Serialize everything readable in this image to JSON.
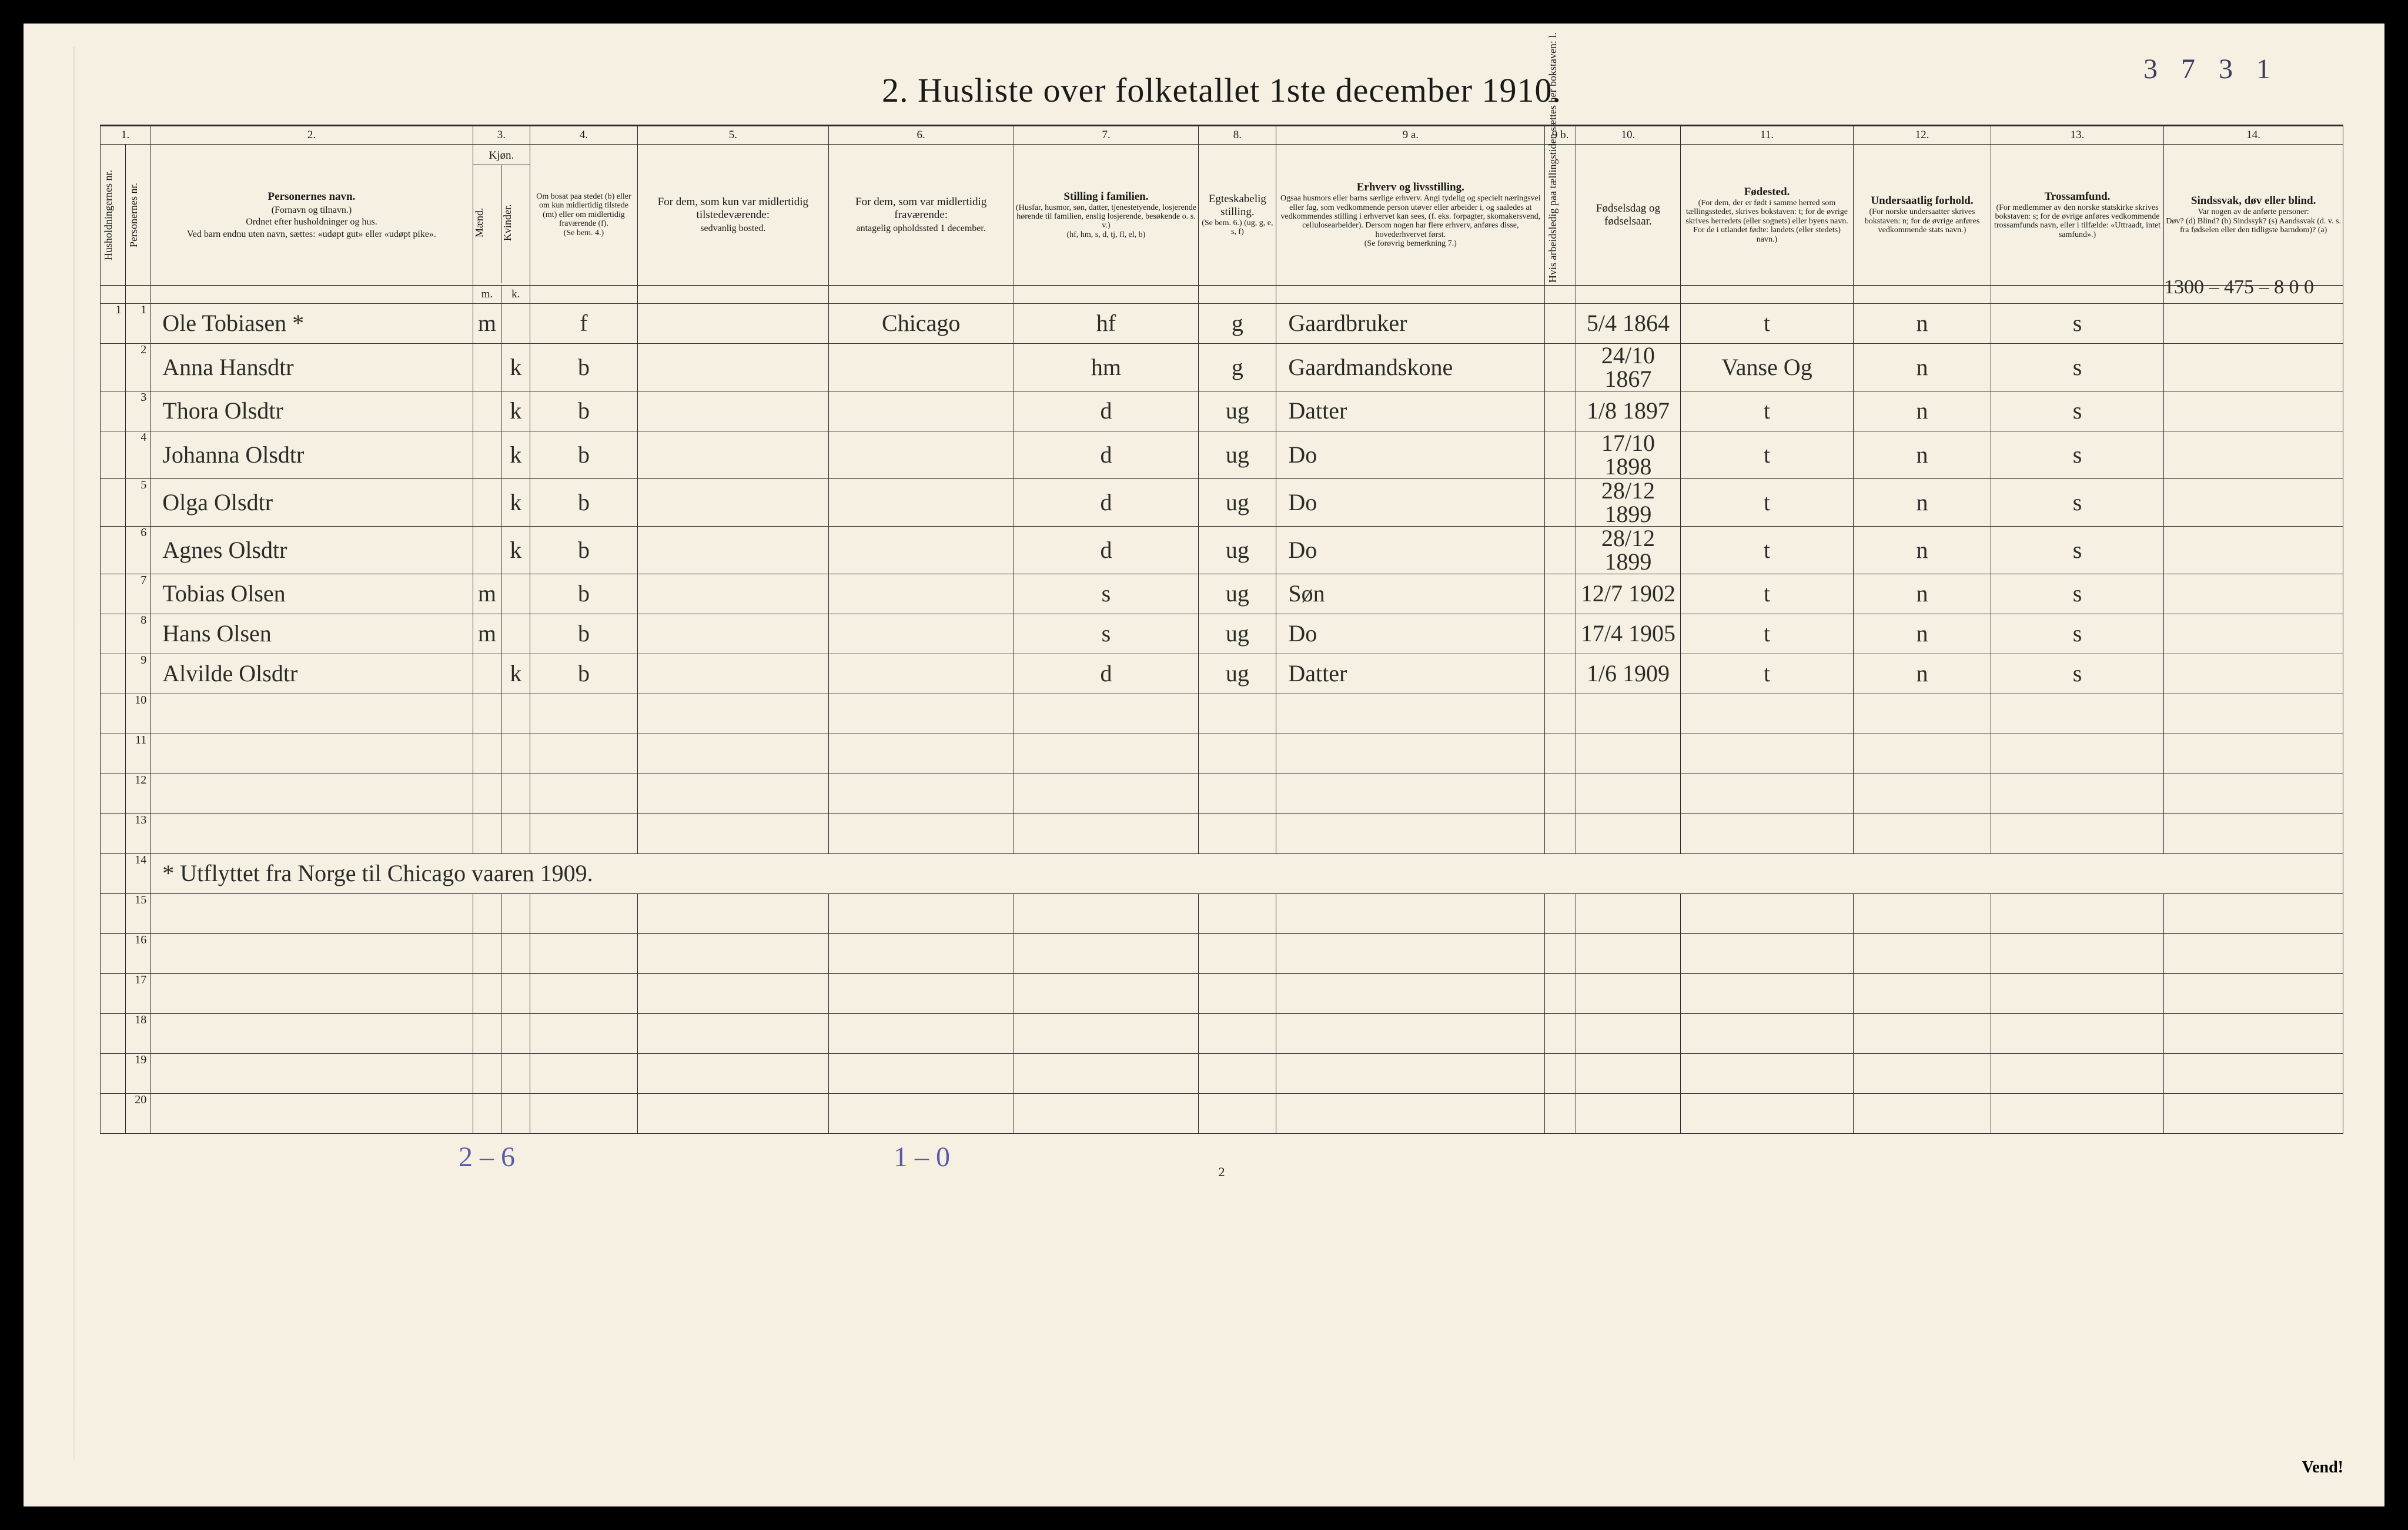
{
  "top_right_note": "3 7 3 1",
  "title": "2.  Husliste over folketallet 1ste december 1910.",
  "header_annotation_right": "1300 – 475 – 8    0   0",
  "column_numbers": [
    "1.",
    "",
    "2.",
    "3.",
    "",
    "4.",
    "5.",
    "6.",
    "7.",
    "8.",
    "9 a.",
    "9 b.",
    "10.",
    "11.",
    "12.",
    "13.",
    "14."
  ],
  "headers": {
    "c1": "Husholdningernes nr.",
    "c1b": "Personernes nr.",
    "c2_main": "Personernes navn.",
    "c2_sub1": "(Fornavn og tilnavn.)",
    "c2_sub2": "Ordnet efter husholdninger og hus.",
    "c2_sub3": "Ved barn endnu uten navn, sættes: «udøpt gut» eller «udøpt pike».",
    "c3_main": "Kjøn.",
    "c3_m": "Mænd.",
    "c3_k": "Kvinder.",
    "c4_main": "Om bosat paa stedet (b) eller om kun midlertidig tilstede (mt) eller om midlertidig fraværende (f).",
    "c4_sub": "(Se bem. 4.)",
    "c5_main": "For dem, som kun var midlertidig tilstedeværende:",
    "c5_sub": "sedvanlig bosted.",
    "c6_main": "For dem, som var midlertidig fraværende:",
    "c6_sub": "antagelig opholdssted 1 december.",
    "c7_main": "Stilling i familien.",
    "c7_sub1": "(Husfar, husmor, søn, datter, tjenestetyende, losjerende hørende til familien, enslig losjerende, besøkende o. s. v.)",
    "c7_sub2": "(hf, hm, s, d, tj, fl, el, b)",
    "c8_main": "Egteskabelig stilling.",
    "c8_sub": "(Se bem. 6.) (ug, g, e, s, f)",
    "c9a_main": "Erhverv og livsstilling.",
    "c9a_sub1": "Ogsaa husmors eller barns særlige erhverv. Angi tydelig og specielt næringsvei eller fag, som vedkommende person utøver eller arbeider i, og saaledes at vedkommendes stilling i erhvervet kan sees, (f. eks. forpagter, skomakersvend, cellulosearbeider). Dersom nogen har flere erhverv, anføres disse, hovederhvervet først.",
    "c9a_sub2": "(Se forøvrig bemerkning 7.)",
    "c9b": "Hvis arbeidsledig paa tællingstiden sættes her bokstaven: l.",
    "c10_main": "Fødselsdag og fødselsaar.",
    "c11_main": "Fødested.",
    "c11_sub": "(For dem, der er født i samme herred som tællingsstedet, skrives bokstaven: t; for de øvrige skrives herredets (eller sognets) eller byens navn. For de i utlandet fødte: landets (eller stedets) navn.)",
    "c12_main": "Undersaatlig forhold.",
    "c12_sub": "(For norske undersaatter skrives bokstaven: n; for de øvrige anføres vedkommende stats navn.)",
    "c13_main": "Trossamfund.",
    "c13_sub": "(For medlemmer av den norske statskirke skrives bokstaven: s; for de øvrige anføres vedkommende trossamfunds navn, eller i tilfælde: «Uttraadt, intet samfund».)",
    "c14_main": "Sindssvak, døv eller blind.",
    "c14_sub1": "Var nogen av de anførte personer:",
    "c14_sub2": "Døv? (d)  Blind? (b)  Sindssyk? (s)  Aandssvak (d. v. s. fra fødselen eller den tidligste barndom)? (a)"
  },
  "col_widths": {
    "c1": 42,
    "c1b": 42,
    "c2": 540,
    "c3m": 48,
    "c3k": 48,
    "c4": 180,
    "c5": 320,
    "c6": 310,
    "c7": 310,
    "c8": 130,
    "c9a": 450,
    "c9b": 52,
    "c10": 175,
    "c11": 290,
    "c12": 230,
    "c13": 290,
    "c14": 300
  },
  "rows": [
    {
      "hnum": "1",
      "pnum": "1",
      "name": "Ole Tobiasen *",
      "m": "m",
      "k": "",
      "res": "f",
      "c5": "",
      "c6": "Chicago",
      "fam": "hf",
      "marital": "g",
      "occ": "Gaardbruker",
      "c9b": "",
      "dob": "5/4 1864",
      "birthplace": "t",
      "nat": "n",
      "rel": "s",
      "c14": ""
    },
    {
      "hnum": "",
      "pnum": "2",
      "name": "Anna Hansdtr",
      "m": "",
      "k": "k",
      "res": "b",
      "c5": "",
      "c6": "",
      "fam": "hm",
      "marital": "g",
      "occ": "Gaardmandskone",
      "c9b": "",
      "dob": "24/10 1867",
      "birthplace": "Vanse Og",
      "nat": "n",
      "rel": "s",
      "c14": ""
    },
    {
      "hnum": "",
      "pnum": "3",
      "name": "Thora Olsdtr",
      "m": "",
      "k": "k",
      "res": "b",
      "c5": "",
      "c6": "",
      "fam": "d",
      "marital": "ug",
      "occ": "Datter",
      "c9b": "",
      "dob": "1/8 1897",
      "birthplace": "t",
      "nat": "n",
      "rel": "s",
      "c14": ""
    },
    {
      "hnum": "",
      "pnum": "4",
      "name": "Johanna Olsdtr",
      "m": "",
      "k": "k",
      "res": "b",
      "c5": "",
      "c6": "",
      "fam": "d",
      "marital": "ug",
      "occ": "Do",
      "c9b": "",
      "dob": "17/10 1898",
      "birthplace": "t",
      "nat": "n",
      "rel": "s",
      "c14": ""
    },
    {
      "hnum": "",
      "pnum": "5",
      "name": "Olga Olsdtr",
      "m": "",
      "k": "k",
      "res": "b",
      "c5": "",
      "c6": "",
      "fam": "d",
      "marital": "ug",
      "occ": "Do",
      "c9b": "",
      "dob": "28/12 1899",
      "birthplace": "t",
      "nat": "n",
      "rel": "s",
      "c14": ""
    },
    {
      "hnum": "",
      "pnum": "6",
      "name": "Agnes Olsdtr",
      "m": "",
      "k": "k",
      "res": "b",
      "c5": "",
      "c6": "",
      "fam": "d",
      "marital": "ug",
      "occ": "Do",
      "c9b": "",
      "dob": "28/12 1899",
      "birthplace": "t",
      "nat": "n",
      "rel": "s",
      "c14": ""
    },
    {
      "hnum": "",
      "pnum": "7",
      "name": "Tobias Olsen",
      "m": "m",
      "k": "",
      "res": "b",
      "c5": "",
      "c6": "",
      "fam": "s",
      "marital": "ug",
      "occ": "Søn",
      "c9b": "",
      "dob": "12/7 1902",
      "birthplace": "t",
      "nat": "n",
      "rel": "s",
      "c14": ""
    },
    {
      "hnum": "",
      "pnum": "8",
      "name": "Hans Olsen",
      "m": "m",
      "k": "",
      "res": "b",
      "c5": "",
      "c6": "",
      "fam": "s",
      "marital": "ug",
      "occ": "Do",
      "c9b": "",
      "dob": "17/4 1905",
      "birthplace": "t",
      "nat": "n",
      "rel": "s",
      "c14": ""
    },
    {
      "hnum": "",
      "pnum": "9",
      "name": "Alvilde Olsdtr",
      "m": "",
      "k": "k",
      "res": "b",
      "c5": "",
      "c6": "",
      "fam": "d",
      "marital": "ug",
      "occ": "Datter",
      "c9b": "",
      "dob": "1/6 1909",
      "birthplace": "t",
      "nat": "n",
      "rel": "s",
      "c14": ""
    }
  ],
  "empty_row_numbers": [
    "10",
    "11",
    "12",
    "13",
    "14",
    "15",
    "16",
    "17",
    "18",
    "19",
    "20"
  ],
  "footnote_text": "* Utflyttet fra Norge til Chicago vaaren 1909.",
  "footnote_row_index": 4,
  "bottom": {
    "left": "2 – 6",
    "mid": "1 – 0",
    "page": "2",
    "vend": "Vend!"
  },
  "colors": {
    "paper": "#f5f0e1",
    "ink": "#1a1a1a",
    "handwriting": "#2b2b28",
    "pencil_blue": "#5a5aa8",
    "pencil_dark": "#3a3a5a"
  }
}
